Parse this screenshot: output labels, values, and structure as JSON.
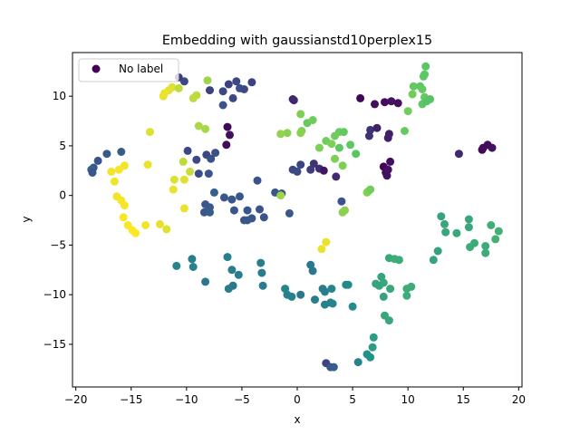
{
  "chart_data": {
    "type": "scatter",
    "title": "Embedding with gaussianstd10perplex15",
    "xlabel": "x",
    "ylabel": "y",
    "xlim": [
      -20.3,
      20.3
    ],
    "ylim": [
      -19.3,
      14.4
    ],
    "xticks": [
      -20,
      -15,
      -10,
      -5,
      0,
      5,
      10,
      15,
      20
    ],
    "yticks": [
      -15,
      -10,
      -5,
      0,
      5,
      10
    ],
    "grid": false,
    "legend": {
      "placement": "top-left",
      "entries": [
        "No label"
      ]
    },
    "colormap": "viridis",
    "series": [
      {
        "name": "No label",
        "points": [
          [
            -10.7,
            11.9,
            0.18
          ],
          [
            -10.2,
            11.5,
            0.22
          ],
          [
            -7.9,
            10.6,
            0.2
          ],
          [
            -6.7,
            10.5,
            0.22
          ],
          [
            -6.2,
            11.2,
            0.2
          ],
          [
            -5.5,
            11.5,
            0.22
          ],
          [
            -5.2,
            10.8,
            0.24
          ],
          [
            -4.8,
            10.7,
            0.22
          ],
          [
            -4.1,
            11.4,
            0.2
          ],
          [
            -6.7,
            9.1,
            0.25
          ],
          [
            -5.8,
            9.8,
            0.22
          ],
          [
            -9.9,
            4.5,
            0.22
          ],
          [
            -9.1,
            3.6,
            0.22
          ],
          [
            -8.9,
            2.2,
            0.23
          ],
          [
            -8.2,
            4.1,
            0.22
          ],
          [
            -7.8,
            3.7,
            0.24
          ],
          [
            -7.4,
            4.3,
            0.24
          ],
          [
            -8.0,
            2.2,
            0.25
          ],
          [
            -7.5,
            0.3,
            0.3
          ],
          [
            -6.3,
            6.9,
            0.02
          ],
          [
            -6.1,
            6.1,
            0.04
          ],
          [
            -6.4,
            5.1,
            0.03
          ],
          [
            -8.3,
            -0.9,
            0.27
          ],
          [
            -8.4,
            -1.7,
            0.27
          ],
          [
            -7.9,
            -1.2,
            0.28
          ],
          [
            -7.9,
            -1.7,
            0.29
          ],
          [
            -6.6,
            -0.2,
            0.27
          ],
          [
            -5.9,
            -0.4,
            0.26
          ],
          [
            -5.2,
            -0.1,
            0.26
          ],
          [
            -5.7,
            -1.5,
            0.27
          ],
          [
            -4.8,
            -2.5,
            0.26
          ],
          [
            -4.5,
            -1.5,
            0.26
          ],
          [
            -4.1,
            -2.3,
            0.26
          ],
          [
            -3.6,
            1.5,
            0.25
          ],
          [
            -3.4,
            -1.4,
            0.25
          ],
          [
            -3.0,
            -2.2,
            0.26
          ],
          [
            -2.0,
            0.3,
            0.27
          ],
          [
            -1.4,
            0.2,
            0.28
          ],
          [
            -0.7,
            -1.8,
            0.28
          ],
          [
            -4.5,
            -2.5,
            0.27
          ],
          [
            -17.2,
            4.2,
            0.28
          ],
          [
            -18.0,
            3.5,
            0.25
          ],
          [
            -18.4,
            2.8,
            0.27
          ],
          [
            -18.6,
            2.6,
            0.3
          ],
          [
            -18.5,
            2.3,
            0.26
          ],
          [
            -15.9,
            4.4,
            0.29
          ],
          [
            -0.4,
            9.7,
            0.1
          ],
          [
            -0.3,
            9.6,
            0.12
          ],
          [
            5.7,
            9.8,
            0.02
          ],
          [
            7.0,
            9.2,
            0.04
          ],
          [
            7.9,
            9.4,
            0.03
          ],
          [
            8.5,
            9.5,
            0.05
          ],
          [
            9.1,
            9.3,
            0.04
          ],
          [
            6.6,
            6.6,
            0.15
          ],
          [
            6.5,
            6.0,
            0.15
          ],
          [
            7.2,
            6.8,
            0.1
          ],
          [
            8.3,
            6.2,
            0.09
          ],
          [
            8.2,
            5.8,
            0.1
          ],
          [
            7.8,
            2.9,
            0.02
          ],
          [
            8.4,
            3.4,
            0.04
          ],
          [
            8.1,
            2.0,
            0.05
          ],
          [
            8.0,
            2.3,
            0.04
          ],
          [
            8.2,
            2.6,
            0.05
          ],
          [
            -0.4,
            2.6,
            0.22
          ],
          [
            0.3,
            3.1,
            0.2
          ],
          [
            0.0,
            2.4,
            0.22
          ],
          [
            1.5,
            3.2,
            0.16
          ],
          [
            2.0,
            2.7,
            0.14
          ],
          [
            2.4,
            2.5,
            0.06
          ],
          [
            3.5,
            1.9,
            0.13
          ],
          [
            4.0,
            -0.6,
            0.25
          ],
          [
            1.2,
            2.6,
            0.18
          ],
          [
            14.6,
            4.2,
            0.12
          ],
          [
            16.7,
            4.6,
            0.02
          ],
          [
            16.8,
            4.8,
            0.03
          ],
          [
            17.2,
            5.1,
            0.03
          ],
          [
            17.6,
            4.8,
            0.05
          ],
          [
            -0.9,
            6.3,
            0.82
          ],
          [
            -1.5,
            6.2,
            0.83
          ],
          [
            0.3,
            8.2,
            0.8
          ],
          [
            0.9,
            7.3,
            0.76
          ],
          [
            1.4,
            7.6,
            0.78
          ],
          [
            0.4,
            6.5,
            0.8
          ],
          [
            0.3,
            6.3,
            0.82
          ],
          [
            2.0,
            4.8,
            0.8
          ],
          [
            2.6,
            5.5,
            0.78
          ],
          [
            3.1,
            5.2,
            0.8
          ],
          [
            3.4,
            6.0,
            0.78
          ],
          [
            3.8,
            6.4,
            0.77
          ],
          [
            3.8,
            4.8,
            0.75
          ],
          [
            3.4,
            3.7,
            0.8
          ],
          [
            4.1,
            3.0,
            0.8
          ],
          [
            4.2,
            6.4,
            0.76
          ],
          [
            4.8,
            5.1,
            0.75
          ],
          [
            5.3,
            4.2,
            0.73
          ],
          [
            6.3,
            0.3,
            0.82
          ],
          [
            6.4,
            0.4,
            0.8
          ],
          [
            6.6,
            0.6,
            0.78
          ],
          [
            4.3,
            -1.5,
            0.82
          ],
          [
            4.1,
            -1.7,
            0.82
          ],
          [
            9.7,
            6.5,
            0.76
          ],
          [
            10.0,
            8.5,
            0.78
          ],
          [
            10.4,
            10.2,
            0.78
          ],
          [
            10.5,
            11.0,
            0.76
          ],
          [
            11.1,
            11.0,
            0.74
          ],
          [
            11.3,
            10.7,
            0.76
          ],
          [
            11.5,
            9.9,
            0.76
          ],
          [
            11.3,
            9.2,
            0.74
          ],
          [
            11.6,
            13.0,
            0.73
          ],
          [
            11.5,
            12.2,
            0.74
          ],
          [
            11.4,
            12.0,
            0.74
          ],
          [
            12.0,
            9.7,
            0.72
          ],
          [
            11.7,
            9.5,
            0.72
          ],
          [
            -11.3,
            10.9,
            0.95
          ],
          [
            -11.6,
            10.6,
            0.96
          ],
          [
            -10.7,
            10.8,
            0.9
          ],
          [
            -12.0,
            10.3,
            0.97
          ],
          [
            -12.1,
            10.0,
            0.97
          ],
          [
            -9.4,
            9.8,
            0.9
          ],
          [
            -9.1,
            10.1,
            0.9
          ],
          [
            -8.1,
            11.6,
            0.85
          ],
          [
            -8.9,
            7.0,
            0.87
          ],
          [
            -8.3,
            6.7,
            0.87
          ],
          [
            -10.3,
            3.4,
            0.9
          ],
          [
            -9.7,
            2.4,
            0.92
          ],
          [
            -11.1,
            1.6,
            0.95
          ],
          [
            -10.2,
            1.6,
            0.95
          ],
          [
            -11.2,
            0.6,
            0.97
          ],
          [
            -10.2,
            -1.3,
            0.97
          ],
          [
            -13.3,
            6.4,
            0.95
          ],
          [
            -13.5,
            3.1,
            0.97
          ],
          [
            -15.6,
            3.0,
            0.98
          ],
          [
            -16.8,
            2.4,
            0.98
          ],
          [
            -16.1,
            2.6,
            0.99
          ],
          [
            -16.5,
            1.4,
            0.98
          ],
          [
            -16.3,
            -0.1,
            0.98
          ],
          [
            -15.9,
            -0.5,
            0.99
          ],
          [
            -15.6,
            -1.0,
            0.99
          ],
          [
            -15.7,
            -2.2,
            0.99
          ],
          [
            -15.3,
            -3.0,
            1.0
          ],
          [
            -14.9,
            -3.5,
            1.0
          ],
          [
            -14.6,
            -3.8,
            1.0
          ],
          [
            -13.7,
            -3.0,
            0.98
          ],
          [
            -12.4,
            -2.9,
            0.96
          ],
          [
            -11.8,
            -3.4,
            0.95
          ],
          [
            -1.5,
            0.0,
            0.85
          ],
          [
            2.6,
            -4.7,
            0.97
          ],
          [
            2.2,
            -5.4,
            0.97
          ],
          [
            -10.9,
            -7.1,
            0.45
          ],
          [
            -9.4,
            -7.2,
            0.44
          ],
          [
            -9.5,
            -6.4,
            0.43
          ],
          [
            -8.3,
            -8.7,
            0.4
          ],
          [
            -6.3,
            -6.2,
            0.42
          ],
          [
            -5.9,
            -7.5,
            0.42
          ],
          [
            -5.3,
            -8.0,
            0.42
          ],
          [
            -6.2,
            -9.4,
            0.42
          ],
          [
            -5.8,
            -9.1,
            0.4
          ],
          [
            -3.3,
            -6.8,
            0.43
          ],
          [
            -3.2,
            -7.8,
            0.42
          ],
          [
            -3.1,
            -9.1,
            0.42
          ],
          [
            -1.1,
            -9.4,
            0.45
          ],
          [
            -0.9,
            -10.0,
            0.44
          ],
          [
            -0.5,
            -10.2,
            0.44
          ],
          [
            0.3,
            -10.0,
            0.4
          ],
          [
            1.2,
            -7.0,
            0.4
          ],
          [
            1.4,
            -7.6,
            0.4
          ],
          [
            1.6,
            -10.5,
            0.42
          ],
          [
            2.3,
            -9.4,
            0.42
          ],
          [
            2.5,
            -9.7,
            0.42
          ],
          [
            3.0,
            -10.8,
            0.44
          ],
          [
            3.1,
            -9.4,
            0.45
          ],
          [
            3.2,
            -10.9,
            0.45
          ],
          [
            4.4,
            -9.0,
            0.47
          ],
          [
            4.6,
            -9.0,
            0.47
          ],
          [
            5.0,
            -11.2,
            0.48
          ],
          [
            2.5,
            -11.0,
            0.44
          ],
          [
            7.1,
            -8.9,
            0.58
          ],
          [
            7.4,
            -9.1,
            0.58
          ],
          [
            7.6,
            -8.2,
            0.58
          ],
          [
            7.8,
            -8.8,
            0.6
          ],
          [
            8.4,
            -9.4,
            0.6
          ],
          [
            7.8,
            -10.2,
            0.58
          ],
          [
            8.3,
            -6.3,
            0.6
          ],
          [
            8.8,
            -6.4,
            0.62
          ],
          [
            9.2,
            -6.5,
            0.62
          ],
          [
            9.9,
            -9.4,
            0.62
          ],
          [
            10.3,
            -9.2,
            0.62
          ],
          [
            9.9,
            -10.1,
            0.62
          ],
          [
            7.9,
            -12.1,
            0.6
          ],
          [
            8.3,
            -12.6,
            0.6
          ],
          [
            6.9,
            -14.3,
            0.55
          ],
          [
            6.8,
            -15.3,
            0.55
          ],
          [
            6.3,
            -16.0,
            0.5
          ],
          [
            6.6,
            -16.3,
            0.5
          ],
          [
            5.5,
            -16.8,
            0.45
          ],
          [
            2.6,
            -16.9,
            0.2
          ],
          [
            3.0,
            -17.3,
            0.25
          ],
          [
            3.3,
            -17.3,
            0.3
          ],
          [
            12.3,
            -6.5,
            0.58
          ],
          [
            12.7,
            -5.6,
            0.57
          ],
          [
            13.0,
            -2.1,
            0.58
          ],
          [
            13.3,
            -2.9,
            0.6
          ],
          [
            13.4,
            -3.7,
            0.6
          ],
          [
            14.4,
            -3.8,
            0.6
          ],
          [
            15.5,
            -2.4,
            0.6
          ],
          [
            15.5,
            -3.2,
            0.6
          ],
          [
            15.6,
            -5.2,
            0.62
          ],
          [
            16.0,
            -4.8,
            0.62
          ],
          [
            17.0,
            -5.1,
            0.62
          ],
          [
            17.0,
            -5.8,
            0.62
          ],
          [
            17.5,
            -3.0,
            0.63
          ],
          [
            17.9,
            -4.4,
            0.64
          ],
          [
            18.2,
            -3.6,
            0.64
          ]
        ]
      }
    ]
  }
}
